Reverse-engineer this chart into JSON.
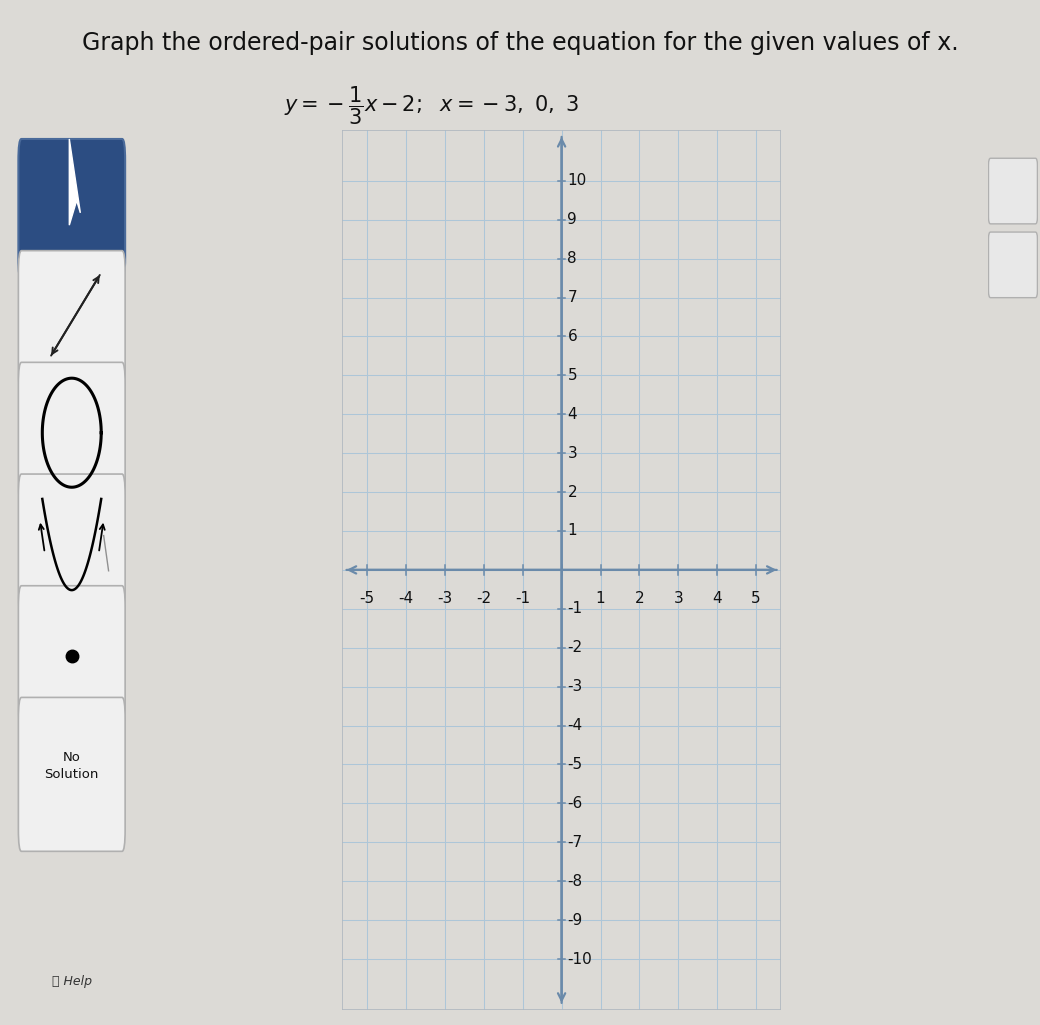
{
  "title": "Graph the ordered-pair solutions of the equation for the given values of x.",
  "xlim_inner": [
    -5,
    5
  ],
  "ylim_inner": [
    -10,
    10
  ],
  "xticks": [
    -5,
    -4,
    -3,
    -2,
    -1,
    1,
    2,
    3,
    4,
    5
  ],
  "yticks": [
    -10,
    -9,
    -8,
    -7,
    -6,
    -5,
    -4,
    -3,
    -2,
    -1,
    1,
    2,
    3,
    4,
    5,
    6,
    7,
    8,
    9,
    10
  ],
  "grid_color": "#adc6d8",
  "grid_linewidth": 0.75,
  "axis_color": "#6a8aaa",
  "axis_lw": 1.6,
  "plot_bg": "#ffffff",
  "plot_border_color": "#b0b8c0",
  "outer_bg_color": "#dcdad6",
  "sidebar_bg": "#d8d5d0",
  "sidebar_btn_dark": "#2c4d82",
  "sidebar_btn_light": "#f0f0f0",
  "sidebar_btn_border_dark": "#4a6a9a",
  "sidebar_btn_border_light": "#b0b0b0",
  "tick_fontsize": 11,
  "title_fontsize": 17,
  "text_color": "#111111",
  "right_panel_bg": "#e0dedd",
  "right_panel_border": "#b0b0b0"
}
